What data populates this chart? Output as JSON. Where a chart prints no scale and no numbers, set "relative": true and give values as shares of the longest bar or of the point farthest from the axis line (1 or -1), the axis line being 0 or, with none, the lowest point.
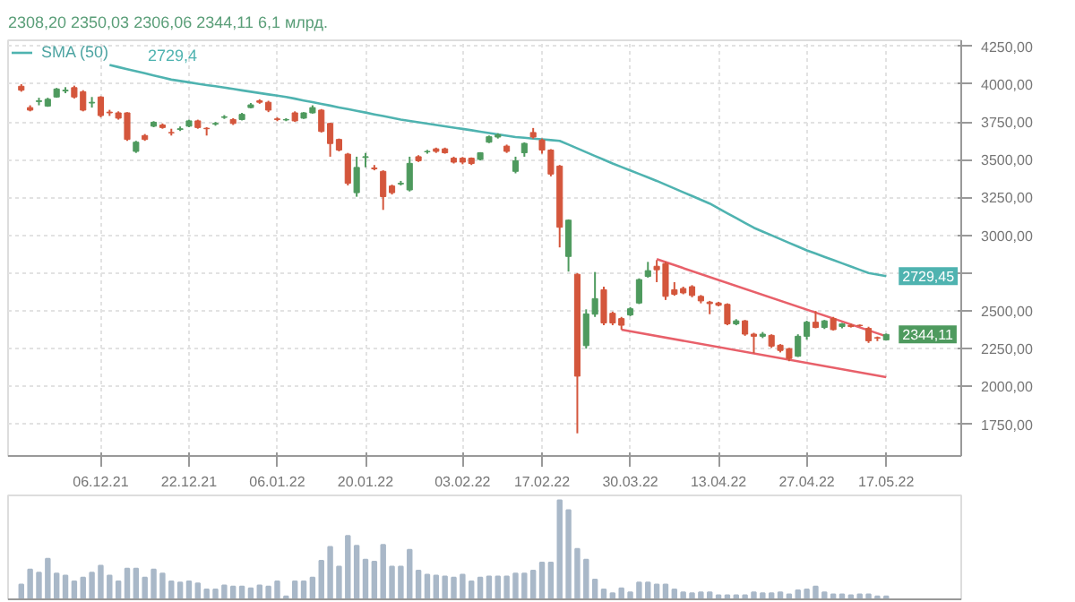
{
  "chart_data": [
    {
      "type": "candlestick",
      "subtitle": "2308,20  2350,03  2306,06  2344,11  6,1 млрд.",
      "categories": [
        null,
        null,
        null,
        null,
        null,
        null,
        null,
        null,
        null,
        "06.12.21",
        null,
        null,
        null,
        null,
        null,
        null,
        null,
        null,
        null,
        "22.12.21",
        null,
        null,
        null,
        null,
        null,
        null,
        null,
        null,
        null,
        "06.01.22",
        null,
        null,
        null,
        null,
        null,
        null,
        null,
        null,
        null,
        "20.01.22",
        null,
        null,
        null,
        null,
        null,
        null,
        null,
        null,
        null,
        null,
        "03.02.22",
        null,
        null,
        null,
        null,
        null,
        null,
        null,
        null,
        "17.02.22",
        null,
        null,
        null,
        null,
        null,
        null,
        null,
        null,
        null,
        "30.03.22",
        null,
        null,
        null,
        null,
        null,
        null,
        null,
        null,
        null,
        "13.04.22",
        null,
        null,
        null,
        null,
        null,
        null,
        null,
        null,
        null,
        "27.04.22",
        null,
        null,
        null,
        null,
        null,
        null,
        null,
        null,
        "17.05.22"
      ],
      "ohlc": [
        [
          3986,
          4000,
          3950,
          3960
        ],
        [
          3845,
          3860,
          3820,
          3828
        ],
        [
          3885,
          3910,
          3860,
          3890
        ],
        [
          3855,
          3910,
          3850,
          3900
        ],
        [
          3915,
          3975,
          3910,
          3968
        ],
        [
          3955,
          3980,
          3940,
          3960
        ],
        [
          3977,
          3990,
          3905,
          3915
        ],
        [
          3950,
          3960,
          3820,
          3828
        ],
        [
          3875,
          3915,
          3845,
          3880
        ],
        [
          3915,
          3920,
          3780,
          3792
        ],
        [
          3815,
          3830,
          3790,
          3810
        ],
        [
          3810,
          3820,
          3765,
          3775
        ],
        [
          3810,
          3815,
          3625,
          3634
        ],
        [
          3555,
          3625,
          3545,
          3616
        ],
        [
          3660,
          3670,
          3625,
          3634
        ],
        [
          3722,
          3755,
          3715,
          3748
        ],
        [
          3730,
          3740,
          3705,
          3713
        ],
        [
          3680,
          3705,
          3660,
          3678
        ],
        [
          3700,
          3720,
          3690,
          3705
        ],
        [
          3722,
          3765,
          3715,
          3757
        ],
        [
          3757,
          3765,
          3705,
          3713
        ],
        [
          3708,
          3715,
          3660,
          3705
        ],
        [
          3736,
          3750,
          3725,
          3740
        ],
        [
          3780,
          3795,
          3770,
          3784
        ],
        [
          3766,
          3775,
          3730,
          3740
        ],
        [
          3766,
          3810,
          3760,
          3800
        ],
        [
          3845,
          3875,
          3840,
          3863
        ],
        [
          3890,
          3900,
          3870,
          3880
        ],
        [
          3880,
          3890,
          3815,
          3828
        ],
        [
          3770,
          3780,
          3755,
          3766
        ],
        [
          3763,
          3775,
          3755,
          3766
        ],
        [
          3810,
          3820,
          3750,
          3757
        ],
        [
          3775,
          3815,
          3770,
          3810
        ],
        [
          3810,
          3860,
          3805,
          3845
        ],
        [
          3828,
          3835,
          3680,
          3687
        ],
        [
          3740,
          3745,
          3520,
          3607
        ],
        [
          3634,
          3640,
          3555,
          3564
        ],
        [
          3537,
          3545,
          3330,
          3344
        ],
        [
          3282,
          3520,
          3255,
          3449
        ],
        [
          3515,
          3545,
          3450,
          3520
        ],
        [
          3445,
          3465,
          3430,
          3440
        ],
        [
          3423,
          3430,
          3168,
          3256
        ],
        [
          3326,
          3335,
          3270,
          3282
        ],
        [
          3340,
          3360,
          3330,
          3344
        ],
        [
          3300,
          3520,
          3290,
          3476
        ],
        [
          3520,
          3530,
          3485,
          3493
        ],
        [
          3552,
          3565,
          3540,
          3555
        ],
        [
          3572,
          3580,
          3545,
          3555
        ],
        [
          3572,
          3580,
          3540,
          3546
        ],
        [
          3510,
          3520,
          3475,
          3484
        ],
        [
          3510,
          3518,
          3470,
          3484
        ],
        [
          3510,
          3515,
          3465,
          3475
        ],
        [
          3502,
          3550,
          3495,
          3546
        ],
        [
          3616,
          3660,
          3610,
          3652
        ],
        [
          3650,
          3675,
          3640,
          3665
        ],
        [
          3590,
          3600,
          3545,
          3555
        ],
        [
          3423,
          3520,
          3410,
          3493
        ],
        [
          3546,
          3615,
          3520,
          3608
        ],
        [
          3680,
          3710,
          3640,
          3650
        ],
        [
          3630,
          3640,
          3540,
          3564
        ],
        [
          3564,
          3570,
          3390,
          3405
        ],
        [
          3458,
          3465,
          2920,
          3053
        ],
        [
          2860,
          3105,
          2760,
          3100
        ],
        [
          2742,
          2750,
          1690,
          2068
        ],
        [
          2270,
          2510,
          2250,
          2480
        ],
        [
          2478,
          2757,
          2460,
          2581
        ],
        [
          2640,
          2660,
          2405,
          2420
        ],
        [
          2484,
          2495,
          2405,
          2420
        ],
        [
          2449,
          2460,
          2376,
          2405
        ],
        [
          2473,
          2525,
          2465,
          2514
        ],
        [
          2552,
          2715,
          2545,
          2707
        ],
        [
          2728,
          2824,
          2720,
          2766
        ],
        [
          2795,
          2836,
          2690,
          2772
        ],
        [
          2813,
          2825,
          2572,
          2596
        ],
        [
          2640,
          2690,
          2600,
          2610
        ],
        [
          2648,
          2660,
          2610,
          2619
        ],
        [
          2660,
          2670,
          2590,
          2602
        ],
        [
          2596,
          2605,
          2550,
          2566
        ],
        [
          2558,
          2566,
          2478,
          2548
        ],
        [
          2552,
          2560,
          2530,
          2537
        ],
        [
          2543,
          2550,
          2405,
          2414
        ],
        [
          2414,
          2445,
          2405,
          2434
        ],
        [
          2434,
          2440,
          2335,
          2346
        ],
        [
          2346,
          2355,
          2220,
          2332
        ],
        [
          2332,
          2360,
          2320,
          2346
        ],
        [
          2338,
          2345,
          2255,
          2267
        ],
        [
          2273,
          2280,
          2225,
          2238
        ],
        [
          2250,
          2255,
          2167,
          2185
        ],
        [
          2200,
          2345,
          2195,
          2332
        ],
        [
          2332,
          2435,
          2310,
          2425
        ],
        [
          2425,
          2499,
          2385,
          2390
        ],
        [
          2390,
          2440,
          2380,
          2434
        ],
        [
          2449,
          2460,
          2370,
          2376
        ],
        [
          2396,
          2420,
          2385,
          2414
        ],
        [
          2405,
          2415,
          2390,
          2396
        ],
        [
          2405,
          2410,
          2395,
          2402
        ],
        [
          2384,
          2395,
          2288,
          2302
        ],
        [
          2323,
          2330,
          2300,
          2320
        ],
        [
          2308.2,
          2350.03,
          2306.06,
          2344.11
        ]
      ],
      "colors": [
        "#d4563c",
        "#d4563c",
        "#4e9a5e",
        "#4e9a5e",
        "#4e9a5e",
        "#4e9a5e",
        "#d4563c",
        "#d4563c",
        "#4e9a5e",
        "#d4563c",
        "#d4563c",
        "#d4563c",
        "#d4563c",
        "#4e9a5e",
        "#d4563c",
        "#4e9a5e",
        "#d4563c",
        "#d4563c",
        "#4e9a5e",
        "#4e9a5e",
        "#d4563c",
        "#d4563c",
        "#4e9a5e",
        "#4e9a5e",
        "#d4563c",
        "#4e9a5e",
        "#4e9a5e",
        "#d4563c",
        "#d4563c",
        "#d4563c",
        "#4e9a5e",
        "#d4563c",
        "#4e9a5e",
        "#4e9a5e",
        "#d4563c",
        "#d4563c",
        "#d4563c",
        "#d4563c",
        "#4e9a5e",
        "#4e9a5e",
        "#d4563c",
        "#d4563c",
        "#d4563c",
        "#4e9a5e",
        "#4e9a5e",
        "#d4563c",
        "#4e9a5e",
        "#d4563c",
        "#d4563c",
        "#d4563c",
        "#d4563c",
        "#d4563c",
        "#4e9a5e",
        "#4e9a5e",
        "#4e9a5e",
        "#d4563c",
        "#4e9a5e",
        "#4e9a5e",
        "#d4563c",
        "#d4563c",
        "#d4563c",
        "#d4563c",
        "#4e9a5e",
        "#d4563c",
        "#4e9a5e",
        "#4e9a5e",
        "#d4563c",
        "#d4563c",
        "#d4563c",
        "#4e9a5e",
        "#4e9a5e",
        "#4e9a5e",
        "#d4563c",
        "#d4563c",
        "#d4563c",
        "#d4563c",
        "#d4563c",
        "#d4563c",
        "#d4563c",
        "#d4563c",
        "#d4563c",
        "#4e9a5e",
        "#d4563c",
        "#d4563c",
        "#4e9a5e",
        "#d4563c",
        "#d4563c",
        "#d4563c",
        "#4e9a5e",
        "#4e9a5e",
        "#d4563c",
        "#4e9a5e",
        "#d4563c",
        "#4e9a5e",
        "#d4563c",
        "#d4563c",
        "#d4563c",
        "#d4563c",
        "#4e9a5e"
      ],
      "series": [
        {
          "type": "line",
          "name": "SMA (50)",
          "color": "#4fb3b0",
          "values": [
            null,
            null,
            null,
            null,
            null,
            null,
            null,
            null,
            null,
            null,
            4127,
            4113,
            4099,
            4085,
            4072,
            4058,
            4044,
            4030,
            4021,
            4012,
            4003,
            3994,
            3986,
            3977,
            3968,
            3959,
            3950,
            3941,
            3932,
            3924,
            3915,
            3904,
            3892,
            3881,
            3869,
            3858,
            3846,
            3835,
            3823,
            3812,
            3800,
            3789,
            3777,
            3766,
            3757,
            3748,
            3739,
            3730,
            3721,
            3712,
            3704,
            3695,
            3686,
            3677,
            3668,
            3659,
            3650,
            3645,
            3640,
            3635,
            3630,
            3625,
            3600,
            3575,
            3550,
            3525,
            3500,
            3475,
            3452,
            3429,
            3406,
            3383,
            3360,
            3335,
            3310,
            3285,
            3260,
            3235,
            3210,
            3178,
            3146,
            3114,
            3082,
            3050,
            3025,
            3000,
            2975,
            2950,
            2925,
            2900,
            2879,
            2857,
            2836,
            2815,
            2793,
            2772,
            2751,
            2740,
            2729.45
          ]
        },
        {
          "type": "line",
          "color": "#e8606a",
          "values": [
            null,
            null,
            null,
            null,
            null,
            null,
            null,
            null,
            null,
            null,
            null,
            null,
            null,
            null,
            null,
            null,
            null,
            null,
            null,
            null,
            null,
            null,
            null,
            null,
            null,
            null,
            null,
            null,
            null,
            null,
            null,
            null,
            null,
            null,
            null,
            null,
            null,
            null,
            null,
            null,
            null,
            null,
            null,
            null,
            null,
            null,
            null,
            null,
            null,
            null,
            null,
            null,
            null,
            null,
            null,
            null,
            null,
            null,
            null,
            null,
            null,
            null,
            null,
            null,
            null,
            null,
            null,
            null,
            null,
            null,
            null,
            null,
            2842,
            null,
            null,
            null,
            null,
            null,
            null,
            null,
            null,
            null,
            null,
            null,
            null,
            null,
            null,
            null,
            null,
            null,
            null,
            null,
            null,
            null,
            null,
            null,
            null,
            null,
            2332
          ]
        },
        {
          "type": "line",
          "color": "#e8606a",
          "values": [
            null,
            null,
            null,
            null,
            null,
            null,
            null,
            null,
            null,
            null,
            null,
            null,
            null,
            null,
            null,
            null,
            null,
            null,
            null,
            null,
            null,
            null,
            null,
            null,
            null,
            null,
            null,
            null,
            null,
            null,
            null,
            null,
            null,
            null,
            null,
            null,
            null,
            null,
            null,
            null,
            null,
            null,
            null,
            null,
            null,
            null,
            null,
            null,
            null,
            null,
            null,
            null,
            null,
            null,
            null,
            null,
            null,
            null,
            null,
            null,
            null,
            null,
            null,
            null,
            null,
            null,
            null,
            null,
            2376,
            null,
            null,
            null,
            null,
            null,
            null,
            null,
            null,
            null,
            null,
            null,
            null,
            null,
            null,
            null,
            null,
            null,
            null,
            null,
            null,
            null,
            null,
            null,
            null,
            null,
            null,
            null,
            null,
            null,
            2061
          ]
        }
      ],
      "ylim": [
        1540,
        4290
      ],
      "yticks": [
        {
          "value": 1750,
          "label": "1750,00"
        },
        {
          "value": 2000,
          "label": "2000,00"
        },
        {
          "value": 2250,
          "label": "2250,00"
        },
        {
          "value": 2500,
          "label": "2500,00"
        },
        {
          "value": 2750,
          "label": null
        },
        {
          "value": 3000,
          "label": "3000,00"
        },
        {
          "value": 3250,
          "label": "3250,00"
        },
        {
          "value": 3500,
          "label": "3500,00"
        },
        {
          "value": 3750,
          "label": "3750,00"
        },
        {
          "value": 4000,
          "label": "4000,00"
        },
        {
          "value": 4250,
          "label": "4250,00"
        }
      ],
      "annotations": [
        "2729,4",
        {
          "text": "2729,45",
          "x": "17.05.22",
          "y": 2729.45
        },
        {
          "text": "2344,11",
          "x": "17.05.22",
          "y": 2344.11
        }
      ],
      "grid": true,
      "legend": "top left"
    },
    {
      "type": "bar",
      "relative": true,
      "color": "#a9b8c8",
      "categories": [
        null,
        null,
        null,
        null,
        null,
        null,
        null,
        null,
        null,
        null,
        null,
        null,
        null,
        null,
        null,
        null,
        null,
        null,
        null,
        null,
        null,
        null,
        null,
        null,
        null,
        null,
        null,
        null,
        null,
        null,
        null,
        null,
        null,
        null,
        null,
        null,
        null,
        null,
        null,
        null,
        null,
        null,
        null,
        null,
        null,
        null,
        null,
        null,
        null,
        null,
        null,
        null,
        null,
        null,
        null,
        null,
        null,
        null,
        null,
        null,
        null,
        null,
        null,
        null,
        null,
        null,
        null,
        null,
        null,
        null,
        null,
        null,
        null,
        null,
        null,
        null,
        null,
        null,
        null,
        null,
        null,
        null,
        null,
        null,
        null,
        null,
        null,
        null,
        null,
        null,
        null,
        null,
        null,
        null,
        null,
        null,
        null,
        null,
        null
      ],
      "values": [
        0.15,
        0.3,
        0.27,
        0.41,
        0.26,
        0.24,
        0.18,
        0.22,
        0.27,
        0.34,
        0.24,
        0.18,
        0.31,
        0.31,
        0.22,
        0.3,
        0.26,
        0.18,
        0.17,
        0.18,
        0.16,
        0.1,
        0.1,
        0.14,
        0.13,
        0.13,
        0.11,
        0.14,
        0.13,
        0.18,
        0.03,
        0.18,
        0.18,
        0.22,
        0.39,
        0.53,
        0.33,
        0.64,
        0.54,
        0.4,
        0.38,
        0.55,
        0.33,
        0.33,
        0.5,
        0.29,
        0.25,
        0.24,
        0.23,
        0.22,
        0.25,
        0.18,
        0.22,
        0.23,
        0.23,
        0.23,
        0.26,
        0.26,
        0.29,
        0.37,
        0.37,
        1,
        0.9,
        0.51,
        0.4,
        0.2,
        0.1,
        0.06,
        0.11,
        0.07,
        0.17,
        0.17,
        0.15,
        0.15,
        0.1,
        0.07,
        0.06,
        0.07,
        0.07,
        0.04,
        0.04,
        0.04,
        0.04,
        0.07,
        0.06,
        0.06,
        0.07,
        0.05,
        0.09,
        0.1,
        0.13,
        0.07,
        0.05,
        0.05,
        0.04,
        0.05,
        0.05,
        0.03,
        0.03
      ],
      "grid": "x"
    }
  ]
}
